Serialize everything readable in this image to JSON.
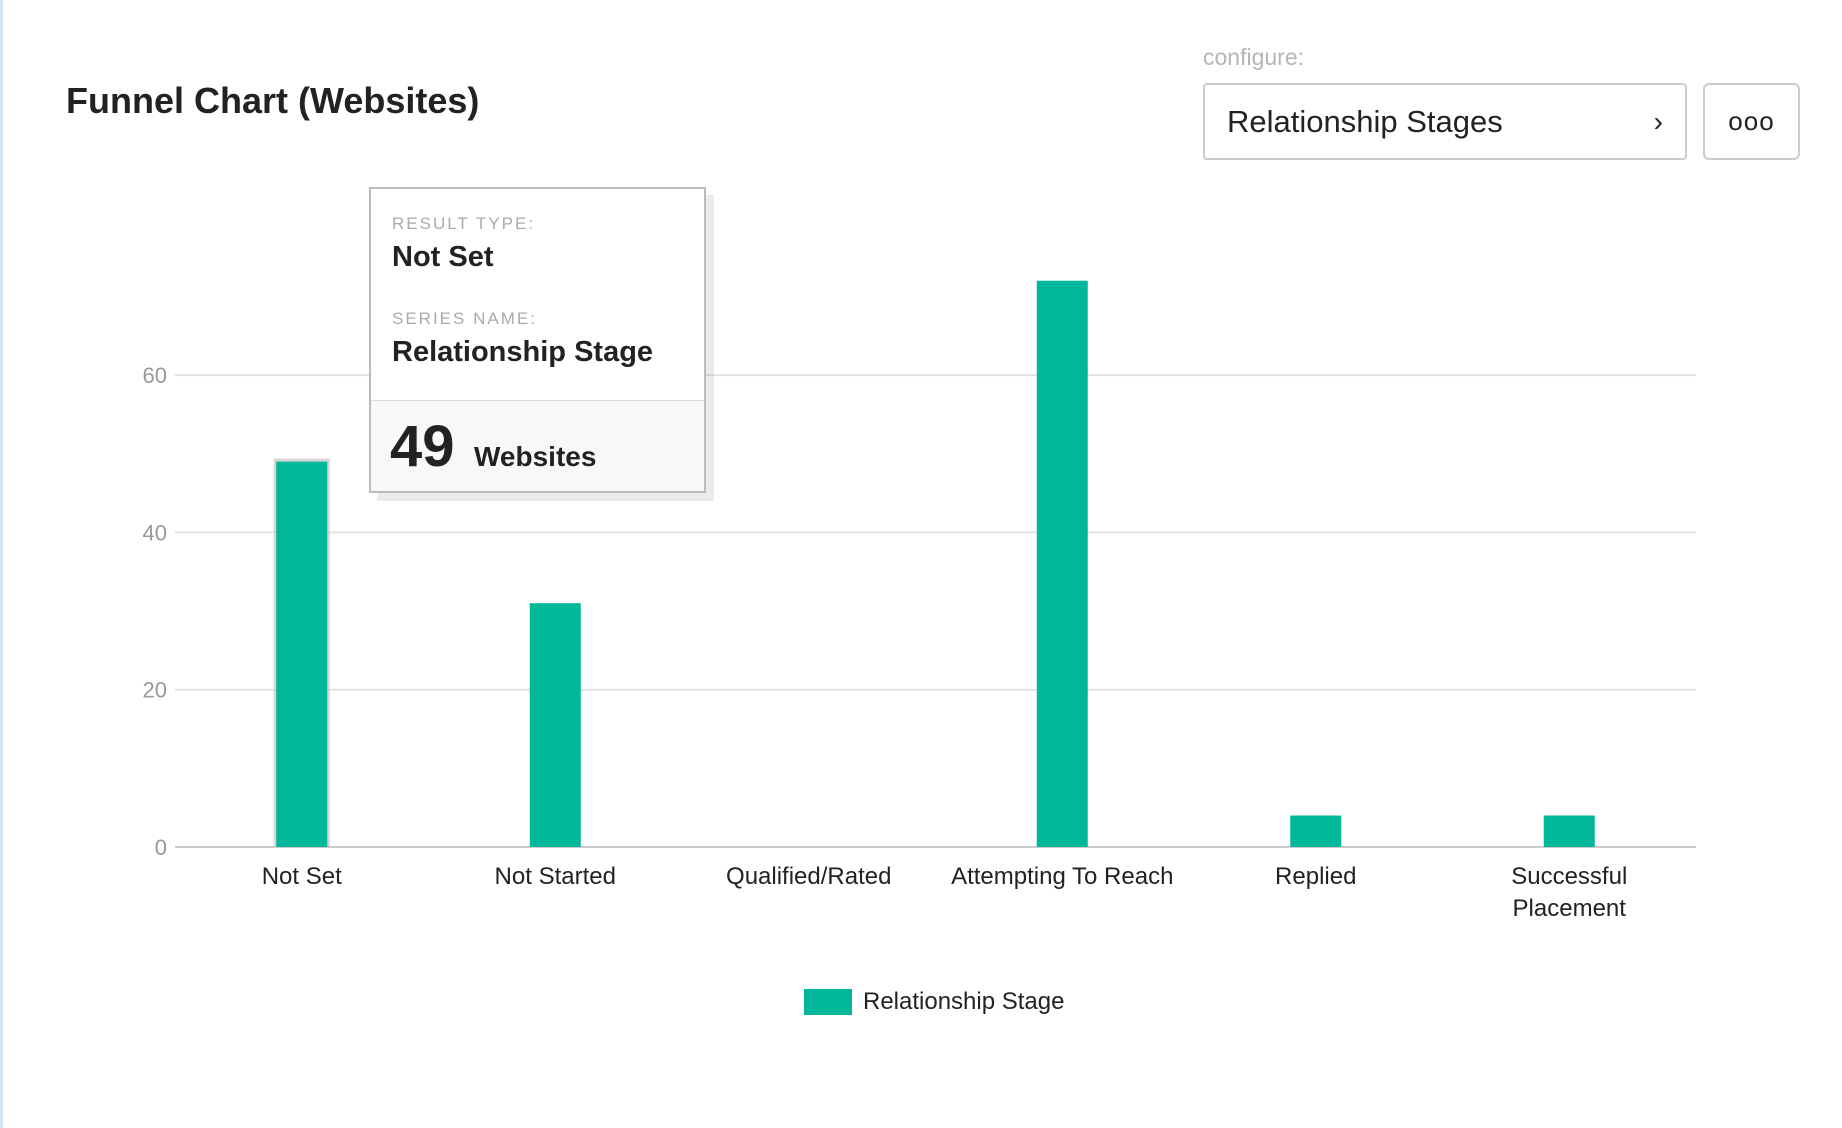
{
  "header": {
    "title": "Funnel Chart (Websites)",
    "configure_label": "configure:",
    "select_value": "Relationship Stages",
    "chevron_icon": "chevron-right-icon",
    "more_label": "ooo",
    "more_icon": "more-options-icon"
  },
  "tooltip": {
    "result_type_label": "RESULT TYPE:",
    "result_type": "Not Set",
    "series_name_label": "SERIES NAME:",
    "series_name": "Relationship Stage",
    "value": "49",
    "unit": "Websites"
  },
  "chart_data": {
    "type": "bar",
    "title": "Funnel Chart (Websites)",
    "categories": [
      "Not Set",
      "Not Started",
      "Qualified/Rated",
      "Attempting To Reach",
      "Replied",
      "Successful Placement"
    ],
    "category_lines": [
      [
        "Not Set"
      ],
      [
        "Not Started"
      ],
      [
        "Qualified/Rated"
      ],
      [
        "Attempting To Reach"
      ],
      [
        "Replied"
      ],
      [
        "Successful",
        "Placement"
      ]
    ],
    "series": [
      {
        "name": "Relationship Stage",
        "values": [
          49,
          31,
          0,
          72,
          4,
          4
        ],
        "color": "#00b899"
      }
    ],
    "yticks": [
      0,
      20,
      40,
      60
    ],
    "ylim": [
      0,
      72
    ],
    "grid": true,
    "legend": "bottom",
    "highlighted": "Not Set"
  }
}
